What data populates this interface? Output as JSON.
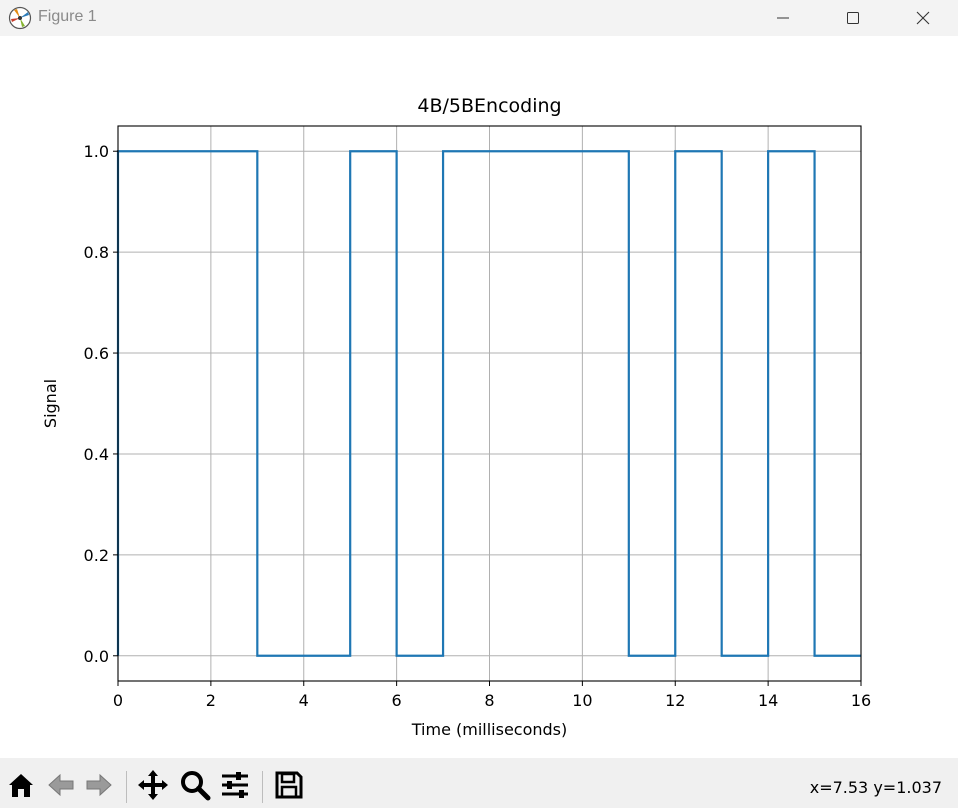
{
  "window": {
    "title": "Figure 1"
  },
  "chart_data": {
    "type": "line",
    "drawstyle": "steps-post",
    "title": "4B/5BEncoding",
    "xlabel": "Time (milliseconds)",
    "ylabel": "Signal",
    "xlim": [
      0,
      16
    ],
    "ylim": [
      -0.05,
      1.05
    ],
    "xticks": [
      0,
      2,
      4,
      6,
      8,
      10,
      12,
      14,
      16
    ],
    "yticks": [
      0.0,
      0.2,
      0.4,
      0.6,
      0.8,
      1.0
    ],
    "xtick_labels": [
      "0",
      "2",
      "4",
      "6",
      "8",
      "10",
      "12",
      "14",
      "16"
    ],
    "ytick_labels": [
      "0.0",
      "0.2",
      "0.4",
      "0.6",
      "0.8",
      "1.0"
    ],
    "grid": true,
    "series": [
      {
        "color": "#1f77b4",
        "x": [
          0,
          0,
          3,
          5,
          6,
          7,
          11,
          12,
          13,
          14,
          15,
          16
        ],
        "y": [
          0,
          1,
          0,
          1,
          0,
          1,
          0,
          1,
          0,
          1,
          0,
          0
        ]
      }
    ]
  },
  "toolbar": {
    "buttons": [
      "home-icon",
      "back-icon",
      "forward-icon",
      "pan-icon",
      "zoom-icon",
      "configure-subplots-icon",
      "save-icon"
    ],
    "coordinates": "x=7.53 y=1.037"
  }
}
